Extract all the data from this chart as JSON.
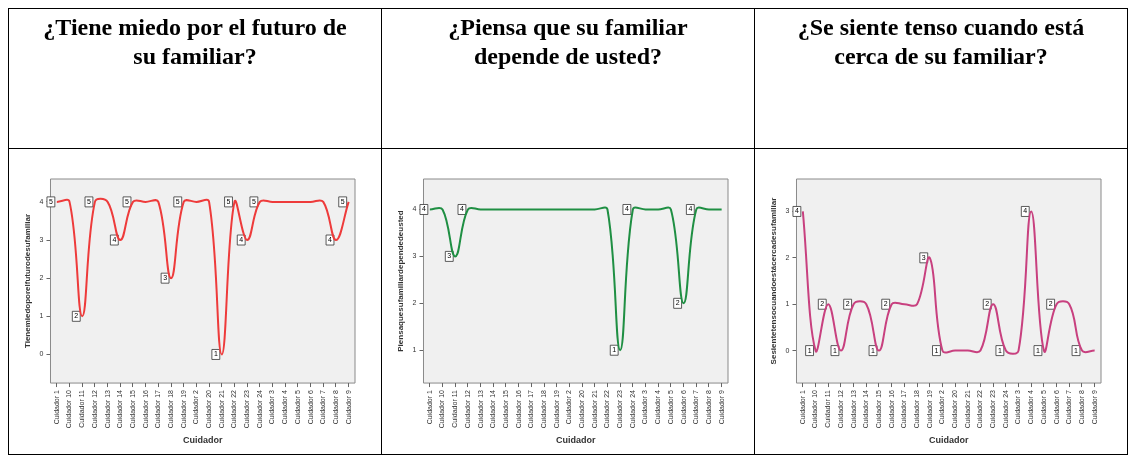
{
  "chart_data": [
    {
      "type": "line",
      "title": "¿Tiene miedo por el futuro de su familiar?",
      "xlabel": "Cuidador",
      "ylabel": "Tienemiedoporelfuturodesufamiliar",
      "categories": [
        "Cuidador 1",
        "Cuidador 10",
        "Cuidador 11",
        "Cuidador 12",
        "Cuidador 13",
        "Cuidador 14",
        "Cuidador 15",
        "Cuidador 16",
        "Cuidador 17",
        "Cuidador 18",
        "Cuidador 19",
        "Cuidador 2",
        "Cuidador 20",
        "Cuidador 21",
        "Cuidador 22",
        "Cuidador 23",
        "Cuidador 24",
        "Cuidador 3",
        "Cuidador 4",
        "Cuidador 5",
        "Cuidador 6",
        "Cuidador 7",
        "Cuidador 8",
        "Cuidador 9"
      ],
      "values": [
        4,
        4,
        1,
        4,
        4,
        3,
        4,
        4,
        4,
        2,
        4,
        4,
        4,
        0,
        4,
        3,
        4,
        4,
        4,
        4,
        4,
        4,
        3,
        4
      ],
      "annotations": [
        {
          "text": "5",
          "x": "Cuidador 1",
          "y": 4
        },
        {
          "text": "2",
          "x": "Cuidador 11",
          "y": 1
        },
        {
          "text": "5",
          "x": "Cuidador 12",
          "y": 4
        },
        {
          "text": "4",
          "x": "Cuidador 14",
          "y": 3
        },
        {
          "text": "5",
          "x": "Cuidador 15",
          "y": 4
        },
        {
          "text": "3",
          "x": "Cuidador 18",
          "y": 2
        },
        {
          "text": "5",
          "x": "Cuidador 19",
          "y": 4
        },
        {
          "text": "1",
          "x": "Cuidador 21",
          "y": 0
        },
        {
          "text": "5",
          "x": "Cuidador 22",
          "y": 4
        },
        {
          "text": "4",
          "x": "Cuidador 23",
          "y": 3
        },
        {
          "text": "5",
          "x": "Cuidador 24",
          "y": 4
        },
        {
          "text": "4",
          "x": "Cuidador 8",
          "y": 3
        },
        {
          "text": "5",
          "x": "Cuidador 9",
          "y": 4
        }
      ],
      "color": "#ee3b3b",
      "marker": "none",
      "grid": false,
      "ylim": [
        -0.75,
        4.6
      ],
      "yticks": [
        0,
        1,
        2,
        3,
        4
      ]
    },
    {
      "type": "line",
      "title": "¿Piensa que su familiar depende de usted?",
      "xlabel": "Cuidador",
      "ylabel": "Piensaquesufamiliardependedeusted",
      "categories": [
        "Cuidador 1",
        "Cuidador 10",
        "Cuidador 11",
        "Cuidador 12",
        "Cuidador 13",
        "Cuidador 14",
        "Cuidador 15",
        "Cuidador 16",
        "Cuidador 17",
        "Cuidador 18",
        "Cuidador 19",
        "Cuidador 2",
        "Cuidador 20",
        "Cuidador 21",
        "Cuidador 22",
        "Cuidador 23",
        "Cuidador 24",
        "Cuidador 3",
        "Cuidador 4",
        "Cuidador 5",
        "Cuidador 6",
        "Cuidador 7",
        "Cuidador 8",
        "Cuidador 9"
      ],
      "values": [
        4,
        4,
        3,
        4,
        4,
        4,
        4,
        4,
        4,
        4,
        4,
        4,
        4,
        4,
        4,
        1,
        4,
        4,
        4,
        4,
        2,
        4,
        4,
        4
      ],
      "annotations": [
        {
          "text": "4",
          "x": "Cuidador 1",
          "y": 4
        },
        {
          "text": "3",
          "x": "Cuidador 11",
          "y": 3
        },
        {
          "text": "4",
          "x": "Cuidador 12",
          "y": 4
        },
        {
          "text": "1",
          "x": "Cuidador 23",
          "y": 1
        },
        {
          "text": "4",
          "x": "Cuidador 24",
          "y": 4
        },
        {
          "text": "2",
          "x": "Cuidador 6",
          "y": 2
        },
        {
          "text": "4",
          "x": "Cuidador 7",
          "y": 4
        }
      ],
      "color": "#1f8f43",
      "marker": "none",
      "grid": false,
      "ylim": [
        0.3,
        4.65
      ],
      "yticks": [
        1,
        2,
        3,
        4
      ]
    },
    {
      "type": "line",
      "title": "¿Se siente tenso cuando está cerca de su familiar?",
      "xlabel": "Cuidador",
      "ylabel": "Sesientetensocuandoestácercadesufamiliar",
      "categories": [
        "Cuidador 1",
        "Cuidador 10",
        "Cuidador 11",
        "Cuidador 12",
        "Cuidador 13",
        "Cuidador 14",
        "Cuidador 15",
        "Cuidador 16",
        "Cuidador 17",
        "Cuidador 18",
        "Cuidador 19",
        "Cuidador 2",
        "Cuidador 20",
        "Cuidador 21",
        "Cuidador 22",
        "Cuidador 23",
        "Cuidador 24",
        "Cuidador 3",
        "Cuidador 4",
        "Cuidador 5",
        "Cuidador 6",
        "Cuidador 7",
        "Cuidador 8",
        "Cuidador 9"
      ],
      "values": [
        3,
        0,
        1,
        0,
        1,
        1,
        0,
        1,
        1,
        1,
        2,
        0,
        0,
        0,
        0,
        1,
        0,
        0,
        3,
        0,
        1,
        1,
        0,
        0
      ],
      "annotations": [
        {
          "text": "4",
          "x": "Cuidador 1",
          "y": 3
        },
        {
          "text": "1",
          "x": "Cuidador 10",
          "y": 0
        },
        {
          "text": "2",
          "x": "Cuidador 11",
          "y": 1
        },
        {
          "text": "1",
          "x": "Cuidador 12",
          "y": 0
        },
        {
          "text": "2",
          "x": "Cuidador 13",
          "y": 1
        },
        {
          "text": "1",
          "x": "Cuidador 15",
          "y": 0
        },
        {
          "text": "2",
          "x": "Cuidador 16",
          "y": 1
        },
        {
          "text": "3",
          "x": "Cuidador 19",
          "y": 2
        },
        {
          "text": "1",
          "x": "Cuidador 2",
          "y": 0
        },
        {
          "text": "2",
          "x": "Cuidador 23",
          "y": 1
        },
        {
          "text": "1",
          "x": "Cuidador 24",
          "y": 0
        },
        {
          "text": "4",
          "x": "Cuidador 4",
          "y": 3
        },
        {
          "text": "1",
          "x": "Cuidador 5",
          "y": 0
        },
        {
          "text": "2",
          "x": "Cuidador 6",
          "y": 1
        },
        {
          "text": "1",
          "x": "Cuidador 8",
          "y": 0
        }
      ],
      "color": "#c8407f",
      "marker": "none",
      "grid": false,
      "ylim": [
        -0.7,
        3.7
      ],
      "yticks": [
        0,
        1,
        2,
        3
      ]
    }
  ]
}
